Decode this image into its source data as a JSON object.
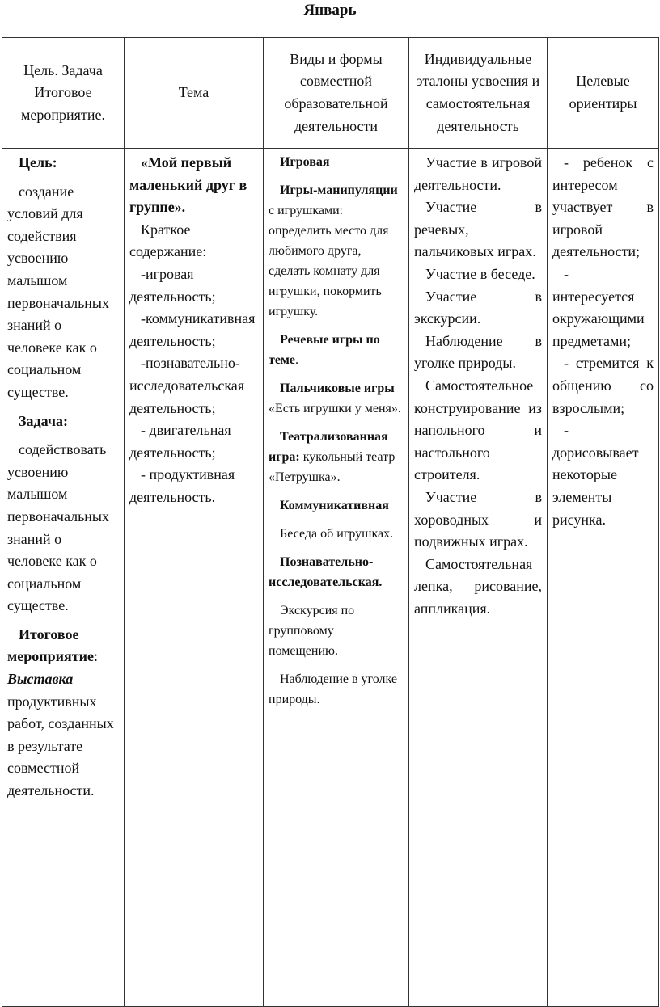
{
  "title": "Январь",
  "headers": [
    "Цель. Задача Итоговое мероприятие.",
    "Тема",
    "Виды и формы совместной образовательной деятельности",
    "Индивидуальные эталоны усвоения и самостоятельная деятельность",
    "Целевые ориентиры"
  ],
  "columns": [
    [
      [
        {
          "t": "Цель:",
          "b": true
        }
      ],
      [
        {
          "t": "создание условий для содействия усвоению малышом первоначальных знаний о человеке как о социальном существе."
        }
      ],
      [
        {
          "t": "Задача:",
          "b": true
        }
      ],
      [
        {
          "t": "содействовать усвоению малышом первоначальных знаний о человеке как о социальном существе."
        }
      ],
      [
        {
          "t": "Итоговое мероприятие",
          "b": true
        },
        {
          "t": ": "
        },
        {
          "t": "Выставка",
          "b": true,
          "i": true
        },
        {
          "t": " продуктивных работ, созданных в результате совместной деятельности."
        }
      ]
    ],
    [
      [
        {
          "t": "«Мой первый маленький друг в группе».",
          "b": true
        }
      ],
      [
        {
          "t": "Краткое содержание:"
        }
      ],
      [
        {
          "t": "-игровая деятельность;"
        }
      ],
      [
        {
          "t": "-коммуникативная деятельность;"
        }
      ],
      [
        {
          "t": "-познавательно-исследовательская деятельность;"
        }
      ],
      [
        {
          "t": "- двигательная деятельность;"
        }
      ],
      [
        {
          "t": "- продуктивная деятельность."
        }
      ]
    ],
    [
      [
        {
          "t": "Игровая",
          "b": true
        }
      ],
      [
        {
          "t": "Игры-манипуляции",
          "b": true
        },
        {
          "t": " с игрушками: определить место для любимого друга, сделать комнату для игрушки, покормить игрушку."
        }
      ],
      [
        {
          "t": "Речевые игры по теме",
          "b": true
        },
        {
          "t": "."
        }
      ],
      [
        {
          "t": "Пальчиковые игры",
          "b": true
        },
        {
          "t": " «Есть игрушки у меня»."
        }
      ],
      [
        {
          "t": "Театрализованная игра:",
          "b": true
        },
        {
          "t": " кукольный театр «Петрушка»."
        }
      ],
      [
        {
          "t": " "
        }
      ],
      [
        {
          "t": "Коммуникативная",
          "b": true
        }
      ],
      [
        {
          "t": "Беседа об игрушках."
        }
      ],
      [
        {
          "t": " "
        }
      ],
      [
        {
          "t": "Познавательно-исследовательская.",
          "b": true
        }
      ],
      [
        {
          "t": "Экскурсия по групповому помещению."
        }
      ],
      [
        {
          "t": "Наблюдение в уголке природы."
        }
      ]
    ],
    [
      [
        {
          "t": "Участие в игровой деятельности."
        }
      ],
      [
        {
          "t": "Участие в речевых, пальчиковых играх."
        }
      ],
      [
        {
          "t": "Участие в беседе."
        }
      ],
      [
        {
          "t": "Участие в экскурсии."
        }
      ],
      [
        {
          "t": "Наблюдение в уголке природы."
        }
      ],
      [
        {
          "t": "Самостоятельное конструирование из напольного и настольного строителя."
        }
      ],
      [
        {
          "t": "Участие в хороводных и подвижных играх."
        }
      ],
      [
        {
          "t": "Самостоятельная лепка, рисование, аппликация."
        }
      ]
    ],
    [
      [
        {
          "t": "- ребенок с интересом участвует в игровой деятельности;"
        }
      ],
      [
        {
          "t": "- интересуется окружающими предметами;"
        }
      ],
      [
        {
          "t": "- стремится к общению со взрослыми;"
        }
      ],
      [
        {
          "t": "- дорисовывает некоторые элементы рисунка."
        }
      ]
    ]
  ]
}
